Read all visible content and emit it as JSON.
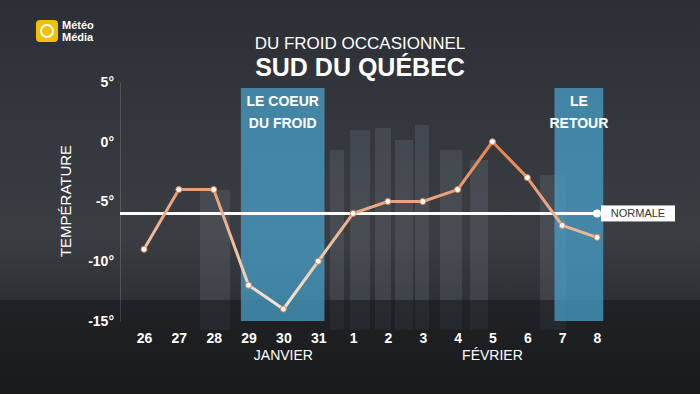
{
  "chart_data": {
    "type": "line",
    "subtitle": "DU FROID OCCASIONNEL",
    "title": "SUD DU QUÉBEC",
    "logo": [
      "Météo",
      "Média"
    ],
    "y_label": "TEMPÉRATURE",
    "categories": [
      "26",
      "27",
      "28",
      "29",
      "30",
      "31",
      "1",
      "2",
      "3",
      "4",
      "5",
      "6",
      "7",
      "8"
    ],
    "months": [
      {
        "label": "JANVIER",
        "at": "30"
      },
      {
        "label": "FÉVRIER",
        "at": "5"
      }
    ],
    "series": [
      {
        "name": "Température",
        "color": "#e8804a",
        "marker": "circle",
        "values": [
          -9,
          -4,
          -4,
          -12,
          -14,
          -10,
          -6,
          -5,
          -5,
          -4,
          0,
          -3,
          -7,
          -8
        ]
      }
    ],
    "normal": {
      "label": "NORMALE",
      "value": -6
    },
    "bands": [
      {
        "label": [
          "LE COEUR",
          "DU FROID"
        ],
        "from": "29",
        "to": "31"
      },
      {
        "label": [
          "LE",
          "RETOUR"
        ],
        "from": "7",
        "to": "8"
      }
    ],
    "ylim": [
      -15,
      5
    ],
    "yticks": [
      {
        "value": 5,
        "label": "5°"
      },
      {
        "value": 0,
        "label": "0°"
      },
      {
        "value": -5,
        "label": "-5°"
      },
      {
        "value": -10,
        "label": "-10°"
      },
      {
        "value": -15,
        "label": "-15°"
      }
    ],
    "grid": false
  }
}
